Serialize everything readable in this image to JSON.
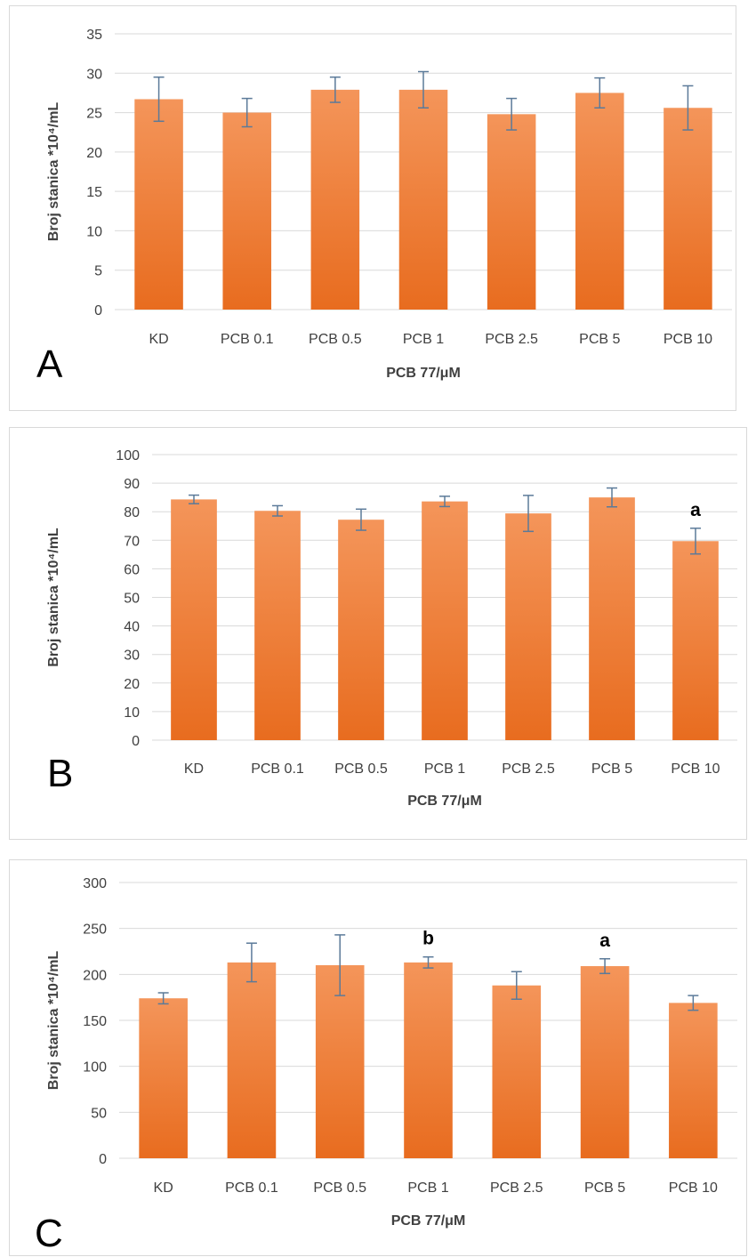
{
  "style": {
    "bar_top_color": "#f4955a",
    "bar_bottom_color": "#e86c1f",
    "error_bar_color": "#5b7a99",
    "grid_color": "#d9d9d9",
    "text_color": "#404040"
  },
  "chart_data": [
    {
      "panel_label": "A",
      "type": "bar",
      "categories": [
        "KD",
        "PCB 0.1",
        "PCB 0.5",
        "PCB 1",
        "PCB 2.5",
        "PCB 5",
        "PCB 10"
      ],
      "values": [
        26.7,
        25.0,
        27.9,
        27.9,
        24.8,
        27.5,
        25.6
      ],
      "errors": [
        2.8,
        1.8,
        1.6,
        2.3,
        2.0,
        1.9,
        2.8
      ],
      "annotations": [
        "",
        "",
        "",
        "",
        "",
        "",
        ""
      ],
      "xlabel": "PCB 77/μM",
      "ylabel": "Broj stanica *10⁴/mL",
      "ylim": [
        0,
        35
      ],
      "yticks": [
        0,
        5,
        10,
        15,
        20,
        25,
        30,
        35
      ],
      "grid": true
    },
    {
      "panel_label": "B",
      "type": "bar",
      "categories": [
        "KD",
        "PCB 0.1",
        "PCB 0.5",
        "PCB 1",
        "PCB 2.5",
        "PCB 5",
        "PCB 10"
      ],
      "values": [
        84.3,
        80.3,
        77.2,
        83.6,
        79.4,
        85.0,
        69.7
      ],
      "errors": [
        1.5,
        1.8,
        3.7,
        1.8,
        6.3,
        3.3,
        4.5
      ],
      "annotations": [
        "",
        "",
        "",
        "",
        "",
        "",
        "a"
      ],
      "xlabel": "PCB 77/μM",
      "ylabel": "Broj stanica *10⁴/mL",
      "ylim": [
        0,
        100
      ],
      "yticks": [
        0,
        10,
        20,
        30,
        40,
        50,
        60,
        70,
        80,
        90,
        100
      ],
      "grid": true
    },
    {
      "panel_label": "C",
      "type": "bar",
      "categories": [
        "KD",
        "PCB 0.1",
        "PCB 0.5",
        "PCB 1",
        "PCB 2.5",
        "PCB 5",
        "PCB 10"
      ],
      "values": [
        174,
        213,
        210,
        213,
        188,
        209,
        169
      ],
      "errors": [
        6,
        21,
        33,
        6,
        15,
        8,
        8
      ],
      "annotations": [
        "",
        "",
        "",
        "b",
        "",
        "a",
        ""
      ],
      "xlabel": "PCB 77/μM",
      "ylabel": "Broj stanica *10⁴/mL",
      "ylim": [
        0,
        300
      ],
      "yticks": [
        0,
        50,
        100,
        150,
        200,
        250,
        300
      ],
      "grid": true
    }
  ]
}
